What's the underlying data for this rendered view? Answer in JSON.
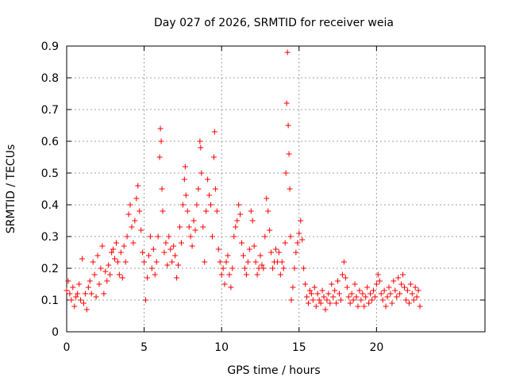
{
  "chart_data": {
    "type": "scatter",
    "title": "Day 027 of 2026, SRMTID for receiver weia",
    "xlabel": "GPS time / hours",
    "ylabel": "SRMTID / TECUs",
    "xlim": [
      0,
      27
    ],
    "ylim": [
      0,
      0.9
    ],
    "xticks": [
      0,
      5,
      10,
      15,
      20
    ],
    "xtick_labels": [
      "0",
      "5",
      "10",
      "15",
      "20"
    ],
    "yticks": [
      0,
      0.1,
      0.2,
      0.3,
      0.4,
      0.5,
      0.6,
      0.7,
      0.8,
      0.9
    ],
    "ytick_labels": [
      "0",
      "0.1",
      "0.2",
      "0.3",
      "0.4",
      "0.5",
      "0.6",
      "0.7",
      "0.8",
      "0.9"
    ],
    "grid": true,
    "marker": "+",
    "color": "#ff0000",
    "series": [
      {
        "name": "weia",
        "points": [
          [
            0.0,
            0.13
          ],
          [
            0.1,
            0.16
          ],
          [
            0.2,
            0.12
          ],
          [
            0.3,
            0.1
          ],
          [
            0.4,
            0.14
          ],
          [
            0.5,
            0.08
          ],
          [
            0.6,
            0.11
          ],
          [
            0.7,
            0.12
          ],
          [
            0.8,
            0.15
          ],
          [
            0.9,
            0.1
          ],
          [
            1.0,
            0.23
          ],
          [
            1.1,
            0.09
          ],
          [
            1.2,
            0.12
          ],
          [
            1.3,
            0.07
          ],
          [
            1.4,
            0.14
          ],
          [
            1.5,
            0.16
          ],
          [
            1.6,
            0.12
          ],
          [
            1.7,
            0.22
          ],
          [
            1.8,
            0.18
          ],
          [
            1.9,
            0.11
          ],
          [
            2.0,
            0.24
          ],
          [
            2.1,
            0.15
          ],
          [
            2.2,
            0.2
          ],
          [
            2.3,
            0.27
          ],
          [
            2.4,
            0.12
          ],
          [
            2.5,
            0.19
          ],
          [
            2.6,
            0.16
          ],
          [
            2.7,
            0.21
          ],
          [
            2.8,
            0.18
          ],
          [
            2.9,
            0.25
          ],
          [
            3.0,
            0.26
          ],
          [
            3.1,
            0.23
          ],
          [
            3.2,
            0.28
          ],
          [
            3.3,
            0.22
          ],
          [
            3.4,
            0.18
          ],
          [
            3.5,
            0.25
          ],
          [
            3.6,
            0.17
          ],
          [
            3.7,
            0.27
          ],
          [
            3.8,
            0.22
          ],
          [
            3.9,
            0.3
          ],
          [
            4.0,
            0.37
          ],
          [
            4.1,
            0.4
          ],
          [
            4.2,
            0.33
          ],
          [
            4.3,
            0.28
          ],
          [
            4.4,
            0.35
          ],
          [
            4.5,
            0.42
          ],
          [
            4.6,
            0.46
          ],
          [
            4.7,
            0.38
          ],
          [
            4.8,
            0.32
          ],
          [
            4.9,
            0.25
          ],
          [
            5.0,
            0.22
          ],
          [
            5.1,
            0.1
          ],
          [
            5.2,
            0.17
          ],
          [
            5.3,
            0.24
          ],
          [
            5.4,
            0.3
          ],
          [
            5.5,
            0.2
          ],
          [
            5.6,
            0.26
          ],
          [
            5.7,
            0.18
          ],
          [
            5.8,
            0.22
          ],
          [
            5.9,
            0.3
          ],
          [
            6.0,
            0.55
          ],
          [
            6.05,
            0.64
          ],
          [
            6.1,
            0.6
          ],
          [
            6.15,
            0.45
          ],
          [
            6.2,
            0.38
          ],
          [
            6.3,
            0.25
          ],
          [
            6.4,
            0.28
          ],
          [
            6.5,
            0.21
          ],
          [
            6.6,
            0.3
          ],
          [
            6.7,
            0.26
          ],
          [
            6.8,
            0.22
          ],
          [
            6.9,
            0.27
          ],
          [
            7.0,
            0.24
          ],
          [
            7.1,
            0.17
          ],
          [
            7.2,
            0.21
          ],
          [
            7.3,
            0.33
          ],
          [
            7.4,
            0.28
          ],
          [
            7.5,
            0.4
          ],
          [
            7.6,
            0.48
          ],
          [
            7.65,
            0.52
          ],
          [
            7.7,
            0.43
          ],
          [
            7.8,
            0.38
          ],
          [
            7.9,
            0.33
          ],
          [
            8.0,
            0.3
          ],
          [
            8.1,
            0.27
          ],
          [
            8.2,
            0.35
          ],
          [
            8.3,
            0.32
          ],
          [
            8.4,
            0.4
          ],
          [
            8.5,
            0.45
          ],
          [
            8.6,
            0.6
          ],
          [
            8.65,
            0.58
          ],
          [
            8.7,
            0.5
          ],
          [
            8.8,
            0.33
          ],
          [
            8.9,
            0.22
          ],
          [
            9.0,
            0.38
          ],
          [
            9.1,
            0.48
          ],
          [
            9.2,
            0.43
          ],
          [
            9.3,
            0.4
          ],
          [
            9.4,
            0.3
          ],
          [
            9.5,
            0.55
          ],
          [
            9.55,
            0.63
          ],
          [
            9.6,
            0.45
          ],
          [
            9.7,
            0.38
          ],
          [
            9.8,
            0.26
          ],
          [
            9.9,
            0.22
          ],
          [
            10.0,
            0.18
          ],
          [
            10.1,
            0.2
          ],
          [
            10.2,
            0.15
          ],
          [
            10.3,
            0.22
          ],
          [
            10.4,
            0.24
          ],
          [
            10.5,
            0.18
          ],
          [
            10.6,
            0.14
          ],
          [
            10.7,
            0.2
          ],
          [
            10.8,
            0.3
          ],
          [
            10.9,
            0.33
          ],
          [
            11.0,
            0.35
          ],
          [
            11.1,
            0.4
          ],
          [
            11.2,
            0.37
          ],
          [
            11.3,
            0.28
          ],
          [
            11.4,
            0.24
          ],
          [
            11.5,
            0.2
          ],
          [
            11.6,
            0.18
          ],
          [
            11.7,
            0.22
          ],
          [
            11.8,
            0.26
          ],
          [
            11.9,
            0.38
          ],
          [
            12.0,
            0.35
          ],
          [
            12.1,
            0.27
          ],
          [
            12.2,
            0.22
          ],
          [
            12.3,
            0.18
          ],
          [
            12.4,
            0.2
          ],
          [
            12.5,
            0.24
          ],
          [
            12.6,
            0.21
          ],
          [
            12.7,
            0.2
          ],
          [
            12.8,
            0.3
          ],
          [
            12.9,
            0.42
          ],
          [
            13.0,
            0.38
          ],
          [
            13.1,
            0.32
          ],
          [
            13.2,
            0.25
          ],
          [
            13.3,
            0.2
          ],
          [
            13.4,
            0.22
          ],
          [
            13.5,
            0.26
          ],
          [
            13.6,
            0.22
          ],
          [
            13.7,
            0.25
          ],
          [
            13.8,
            0.18
          ],
          [
            13.9,
            0.22
          ],
          [
            14.0,
            0.2
          ],
          [
            14.1,
            0.28
          ],
          [
            14.15,
            0.5
          ],
          [
            14.2,
            0.72
          ],
          [
            14.25,
            0.88
          ],
          [
            14.3,
            0.65
          ],
          [
            14.35,
            0.56
          ],
          [
            14.4,
            0.45
          ],
          [
            14.45,
            0.3
          ],
          [
            14.5,
            0.1
          ],
          [
            14.6,
            0.14
          ],
          [
            14.7,
            0.2
          ],
          [
            14.8,
            0.25
          ],
          [
            14.9,
            0.28
          ],
          [
            15.0,
            0.31
          ],
          [
            15.1,
            0.35
          ],
          [
            15.2,
            0.29
          ],
          [
            15.3,
            0.2
          ],
          [
            15.4,
            0.15
          ],
          [
            15.5,
            0.11
          ],
          [
            15.6,
            0.09
          ],
          [
            15.7,
            0.13
          ],
          [
            15.8,
            0.12
          ],
          [
            15.9,
            0.1
          ],
          [
            16.0,
            0.14
          ],
          [
            16.1,
            0.08
          ],
          [
            16.2,
            0.12
          ],
          [
            16.3,
            0.1
          ],
          [
            16.4,
            0.09
          ],
          [
            16.5,
            0.13
          ],
          [
            16.6,
            0.11
          ],
          [
            16.7,
            0.07
          ],
          [
            16.8,
            0.1
          ],
          [
            16.9,
            0.12
          ],
          [
            17.0,
            0.09
          ],
          [
            17.1,
            0.15
          ],
          [
            17.2,
            0.11
          ],
          [
            17.3,
            0.13
          ],
          [
            17.4,
            0.09
          ],
          [
            17.5,
            0.16
          ],
          [
            17.6,
            0.12
          ],
          [
            17.7,
            0.1
          ],
          [
            17.8,
            0.18
          ],
          [
            17.9,
            0.22
          ],
          [
            18.0,
            0.17
          ],
          [
            18.1,
            0.14
          ],
          [
            18.2,
            0.11
          ],
          [
            18.3,
            0.09
          ],
          [
            18.4,
            0.12
          ],
          [
            18.5,
            0.1
          ],
          [
            18.6,
            0.15
          ],
          [
            18.7,
            0.11
          ],
          [
            18.8,
            0.08
          ],
          [
            18.9,
            0.13
          ],
          [
            19.0,
            0.1
          ],
          [
            19.1,
            0.12
          ],
          [
            19.2,
            0.08
          ],
          [
            19.3,
            0.11
          ],
          [
            19.4,
            0.14
          ],
          [
            19.5,
            0.09
          ],
          [
            19.6,
            0.12
          ],
          [
            19.7,
            0.1
          ],
          [
            19.8,
            0.13
          ],
          [
            19.9,
            0.11
          ],
          [
            20.0,
            0.15
          ],
          [
            20.1,
            0.18
          ],
          [
            20.2,
            0.16
          ],
          [
            20.3,
            0.12
          ],
          [
            20.4,
            0.1
          ],
          [
            20.5,
            0.13
          ],
          [
            20.6,
            0.08
          ],
          [
            20.7,
            0.11
          ],
          [
            20.8,
            0.14
          ],
          [
            20.9,
            0.12
          ],
          [
            21.0,
            0.09
          ],
          [
            21.1,
            0.16
          ],
          [
            21.2,
            0.13
          ],
          [
            21.3,
            0.11
          ],
          [
            21.4,
            0.17
          ],
          [
            21.5,
            0.12
          ],
          [
            21.6,
            0.15
          ],
          [
            21.7,
            0.18
          ],
          [
            21.8,
            0.14
          ],
          [
            21.9,
            0.1
          ],
          [
            22.0,
            0.13
          ],
          [
            22.1,
            0.09
          ],
          [
            22.2,
            0.15
          ],
          [
            22.3,
            0.12
          ],
          [
            22.4,
            0.1
          ],
          [
            22.5,
            0.14
          ],
          [
            22.6,
            0.11
          ],
          [
            22.7,
            0.13
          ],
          [
            22.8,
            0.08
          ]
        ]
      }
    ]
  }
}
